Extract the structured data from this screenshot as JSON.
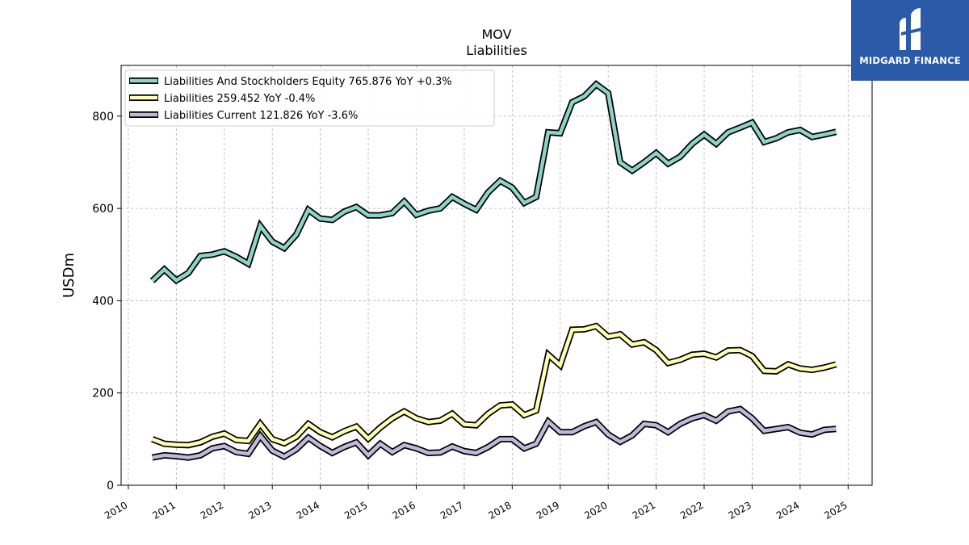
{
  "chart_data": {
    "type": "line",
    "title": "MOV",
    "subtitle": "Liabilities",
    "ylabel": "USDm",
    "xlabel": "",
    "ylim": [
      0,
      910
    ],
    "xlim": [
      2009.85,
      2025.5
    ],
    "yticks": [
      0,
      200,
      400,
      600,
      800
    ],
    "xticks": [
      "2010",
      "2011",
      "2012",
      "2013",
      "2014",
      "2015",
      "2016",
      "2017",
      "2018",
      "2019",
      "2020",
      "2021",
      "2022",
      "2023",
      "2024",
      "2025"
    ],
    "grid": true,
    "legend_position": "top-left",
    "x": [
      2010.5,
      2010.75,
      2011.0,
      2011.25,
      2011.5,
      2011.75,
      2012.0,
      2012.25,
      2012.5,
      2012.75,
      2013.0,
      2013.25,
      2013.5,
      2013.75,
      2014.0,
      2014.25,
      2014.5,
      2014.75,
      2015.0,
      2015.25,
      2015.5,
      2015.75,
      2016.0,
      2016.25,
      2016.5,
      2016.75,
      2017.0,
      2017.25,
      2017.5,
      2017.75,
      2018.0,
      2018.25,
      2018.5,
      2018.75,
      2019.0,
      2019.25,
      2019.5,
      2019.75,
      2020.0,
      2020.25,
      2020.5,
      2020.75,
      2021.0,
      2021.25,
      2021.5,
      2021.75,
      2022.0,
      2022.25,
      2022.5,
      2022.75,
      2023.0,
      2023.25,
      2023.5,
      2023.75,
      2024.0,
      2024.25,
      2024.5,
      2024.75
    ],
    "series": [
      {
        "name": "Liabilities And Stockholders Equity",
        "legend": "Liabilities And Stockholders Equity  765.876 YoY +0.3%",
        "color": "#8dd3c7",
        "values": [
          443,
          468,
          444,
          460,
          497,
          500,
          507,
          495,
          480,
          562,
          528,
          514,
          543,
          597,
          578,
          575,
          593,
          603,
          585,
          585,
          590,
          615,
          586,
          595,
          600,
          625,
          610,
          597,
          635,
          660,
          645,
          612,
          625,
          765,
          763,
          830,
          843,
          869,
          850,
          700,
          682,
          700,
          720,
          697,
          712,
          740,
          760,
          740,
          765,
          775,
          786,
          744,
          752,
          765,
          770,
          755,
          760,
          766
        ]
      },
      {
        "name": "Liabilities",
        "legend": "Liabilities  259.452 YoY -0.4%",
        "color": "#ffffb3",
        "values": [
          100,
          90,
          88,
          87,
          93,
          105,
          112,
          98,
          96,
          133,
          100,
          91,
          105,
          133,
          115,
          104,
          117,
          127,
          101,
          125,
          145,
          160,
          145,
          137,
          140,
          155,
          132,
          130,
          155,
          173,
          175,
          152,
          162,
          283,
          260,
          337,
          338,
          345,
          322,
          327,
          305,
          310,
          293,
          265,
          272,
          283,
          285,
          277,
          292,
          293,
          280,
          248,
          247,
          262,
          253,
          250,
          255,
          262
        ]
      },
      {
        "name": "Liabilities Current",
        "legend": "Liabilities Current  121.826 YoY -3.6%",
        "color": "#bebada",
        "values": [
          60,
          65,
          63,
          60,
          65,
          80,
          85,
          72,
          68,
          107,
          75,
          62,
          78,
          103,
          85,
          70,
          83,
          93,
          65,
          90,
          72,
          87,
          80,
          70,
          71,
          84,
          74,
          70,
          83,
          100,
          100,
          80,
          90,
          138,
          115,
          115,
          128,
          137,
          110,
          94,
          108,
          133,
          130,
          115,
          133,
          145,
          152,
          140,
          160,
          165,
          145,
          118,
          122,
          126,
          114,
          110,
          120,
          122
        ]
      }
    ]
  },
  "logo": {
    "text": "MIDGARD FINANCE",
    "color": "#2a5aa8"
  }
}
